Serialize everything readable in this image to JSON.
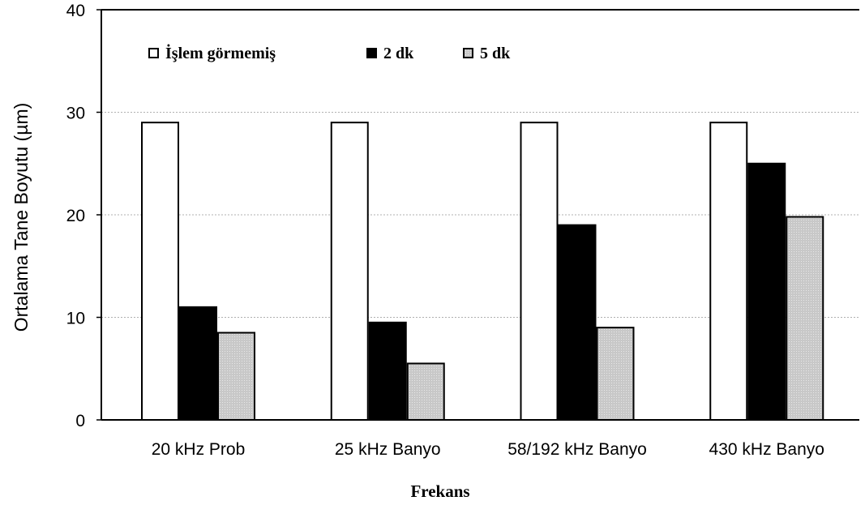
{
  "chart_data": {
    "type": "bar",
    "title": "",
    "xlabel": "Frekans",
    "ylabel": "Ortalama Tane Boyutu (µm)",
    "categories": [
      "20 kHz Prob",
      "25 kHz Banyo",
      "58/192 kHz Banyo",
      "430 kHz Banyo"
    ],
    "series": [
      {
        "name": "İşlem görmemiş",
        "values": [
          29,
          29,
          29,
          29
        ],
        "color": "#ffffff"
      },
      {
        "name": "2 dk",
        "values": [
          11,
          9.5,
          19,
          25
        ],
        "color": "#000000"
      },
      {
        "name": "5 dk",
        "values": [
          8.5,
          5.5,
          9,
          19.8
        ],
        "color": "#c8c8c8"
      }
    ],
    "ylim": [
      0,
      40
    ],
    "yticks": [
      0,
      10,
      20,
      30,
      40
    ],
    "grid": true,
    "legend_position": "top-left"
  }
}
